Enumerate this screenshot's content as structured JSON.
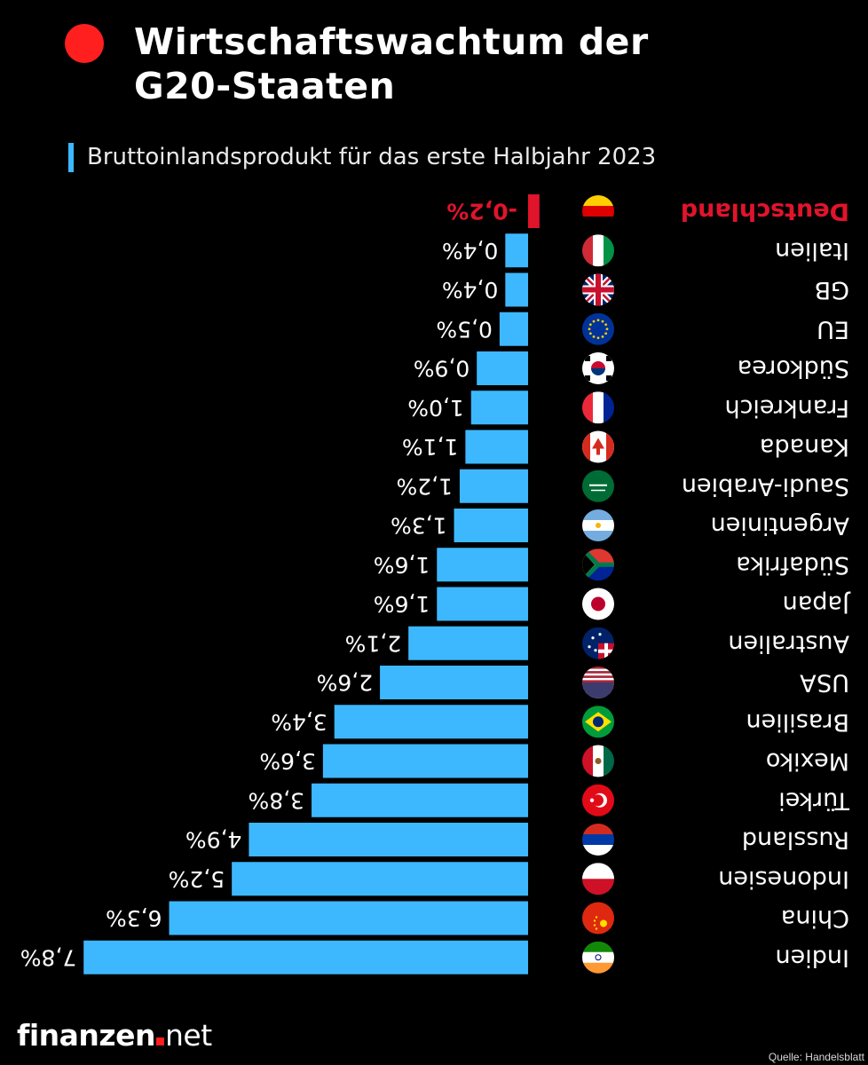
{
  "header": {
    "title_line1": "Wirtschaftswachtum der",
    "title_line2": "G20-Staaten",
    "subtitle": "Bruttoinlandsprodukt für das erste Halbjahr 2023"
  },
  "footer": {
    "logo_main": "finanzen",
    "logo_suffix": "net",
    "source": "Quelle: Handelsblatt"
  },
  "colors": {
    "background": "#000000",
    "bar_positive": "#3db8ff",
    "bar_negative": "#e0142b",
    "accent": "#ff1f1f",
    "highlight_label": "#e0142b"
  },
  "chart_data": {
    "type": "bar",
    "orientation": "horizontal",
    "image_rotated_180": true,
    "title": "Wirtschaftswachtum der G20-Staaten",
    "subtitle": "Bruttoinlandsprodukt für das erste Halbjahr 2023",
    "unit": "%",
    "categories": [
      "Deutschland",
      "Italien",
      "GB",
      "EU",
      "Südkorea",
      "Frankreich",
      "Kanada",
      "Saudi-Arabien",
      "Argentinien",
      "Südafrika",
      "Japan",
      "Australien",
      "USA",
      "Brasilien",
      "Mexiko",
      "Türkei",
      "Russland",
      "Indonesien",
      "China",
      "Indien"
    ],
    "values": [
      -0.2,
      0.4,
      0.4,
      0.5,
      0.9,
      1.0,
      1.1,
      1.2,
      1.3,
      1.6,
      1.6,
      2.1,
      2.6,
      3.4,
      3.6,
      3.8,
      4.9,
      5.2,
      6.3,
      7.8
    ],
    "value_labels": [
      "-0,2%",
      "0,4%",
      "0,4%",
      "0,5%",
      "0,9%",
      "1,0%",
      "1,1%",
      "1,2%",
      "1,3%",
      "1,6%",
      "1,6%",
      "2,1%",
      "2,6%",
      "3,4%",
      "3,6%",
      "3,8%",
      "4,9%",
      "5,2%",
      "6,3%",
      "7,8%"
    ],
    "flags": [
      "germany-flag-icon",
      "italy-flag-icon",
      "uk-flag-icon",
      "eu-flag-icon",
      "south-korea-flag-icon",
      "france-flag-icon",
      "canada-flag-icon",
      "saudi-arabia-flag-icon",
      "argentina-flag-icon",
      "south-africa-flag-icon",
      "japan-flag-icon",
      "australia-flag-icon",
      "usa-flag-icon",
      "brazil-flag-icon",
      "mexico-flag-icon",
      "turkey-flag-icon",
      "russia-flag-icon",
      "indonesia-flag-icon",
      "china-flag-icon",
      "india-flag-icon"
    ],
    "highlight": "Deutschland",
    "grid": false,
    "legend": "none"
  }
}
